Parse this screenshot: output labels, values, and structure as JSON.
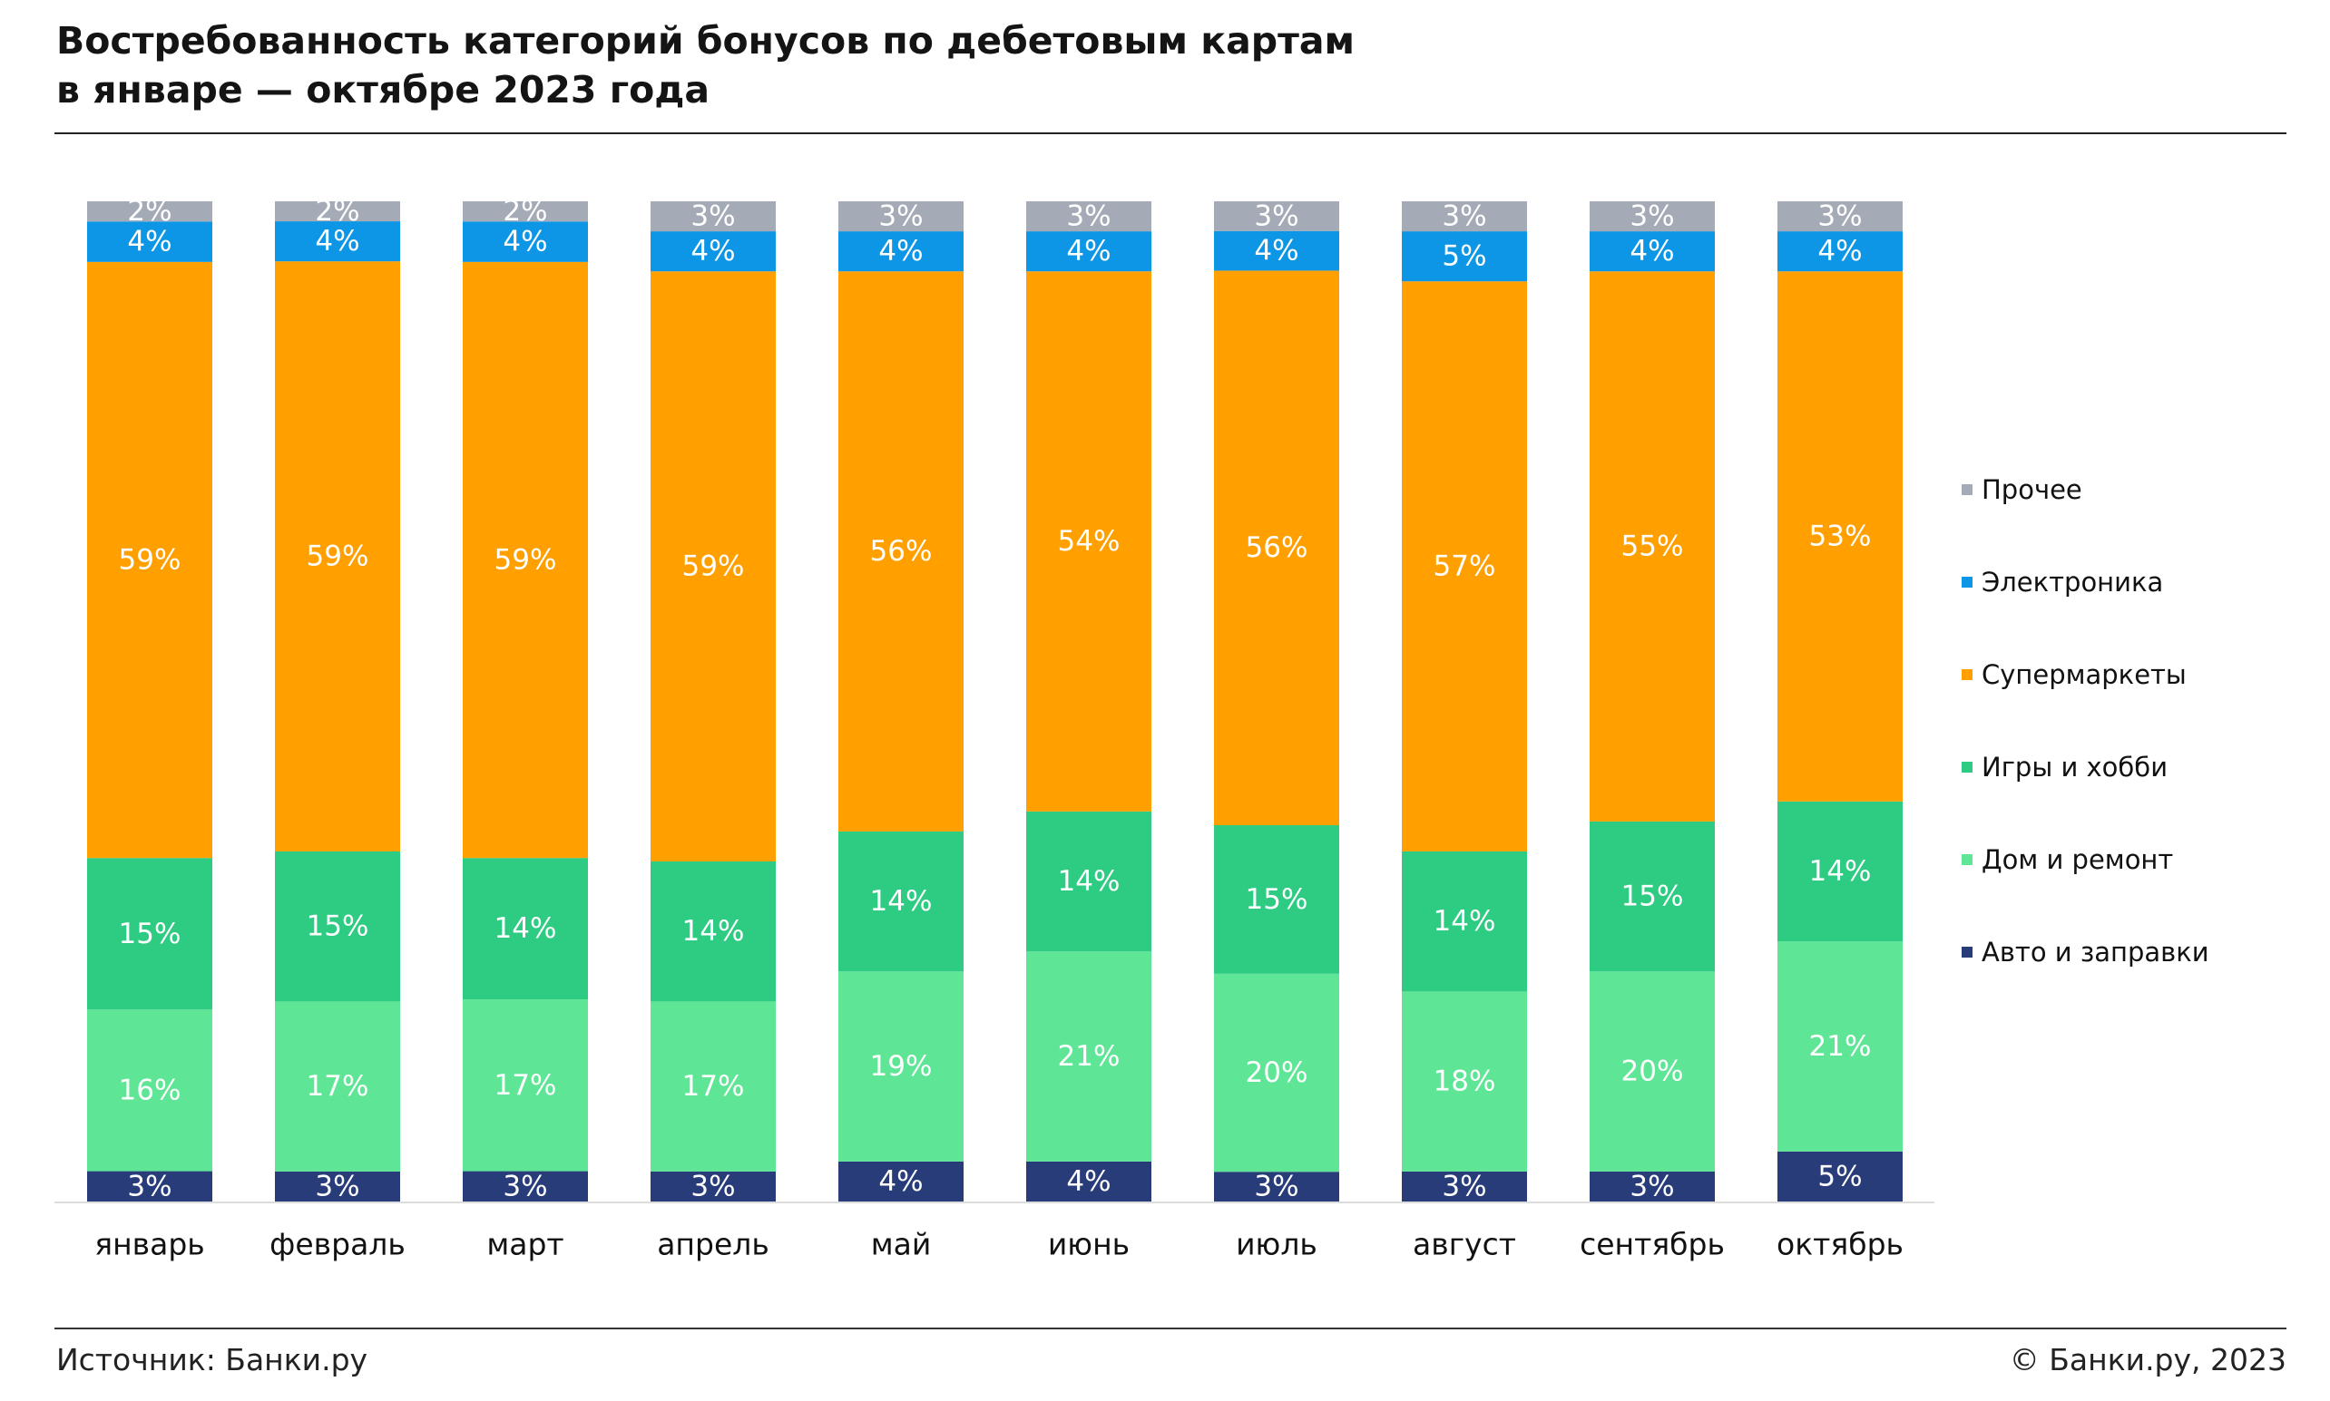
{
  "header": {
    "title_line1": "Востребованность категорий бонусов по дебетовым картам",
    "title_line2": "в январе — октябре 2023 года"
  },
  "footer": {
    "source": "Источник: Банки.ру",
    "copyright": "© Банки.ру, 2023"
  },
  "colors": {
    "other": "#a4aab6",
    "electronics": "#0d96e6",
    "supermarkets": "#ff9f00",
    "games": "#2ecb83",
    "home": "#5ee696",
    "auto": "#283c7a"
  },
  "chart_data": {
    "type": "bar",
    "stacked": true,
    "categories": [
      "январь",
      "февраль",
      "март",
      "апрель",
      "май",
      "июнь",
      "июль",
      "август",
      "сентябрь",
      "октябрь"
    ],
    "series": [
      {
        "name": "Авто и заправки",
        "key": "auto",
        "values": [
          3,
          3,
          3,
          3,
          4,
          4,
          3,
          3,
          3,
          5
        ],
        "labels": [
          "3%",
          "3%",
          "3%",
          "3%",
          "4%",
          "4%",
          "3%",
          "3%",
          "3%",
          "5%"
        ]
      },
      {
        "name": "Дом и ремонт",
        "key": "home",
        "values": [
          16,
          17,
          17,
          17,
          19,
          21,
          20,
          18,
          20,
          21
        ],
        "labels": [
          "16%",
          "17%",
          "17%",
          "17%",
          "19%",
          "21%",
          "20%",
          "18%",
          "20%",
          "21%"
        ]
      },
      {
        "name": "Игры и хобби",
        "key": "games",
        "values": [
          15,
          15,
          14,
          14,
          14,
          14,
          15,
          14,
          15,
          14
        ],
        "labels": [
          "15%",
          "15%",
          "14%",
          "14%",
          "14%",
          "14%",
          "15%",
          "14%",
          "15%",
          "14%"
        ]
      },
      {
        "name": "Супермаркеты",
        "key": "supermarkets",
        "values": [
          59,
          59,
          59,
          59,
          56,
          54,
          56,
          57,
          55,
          53
        ],
        "labels": [
          "59%",
          "59%",
          "59%",
          "59%",
          "56%",
          "54%",
          "56%",
          "57%",
          "55%",
          "53%"
        ]
      },
      {
        "name": "Электроника",
        "key": "electronics",
        "values": [
          4,
          4,
          4,
          4,
          4,
          4,
          4,
          5,
          4,
          4
        ],
        "labels": [
          "4%",
          "4%",
          "4%",
          "4%",
          "4%",
          "4%",
          "4%",
          "5%",
          "4%",
          "4%"
        ]
      },
      {
        "name": "Прочее",
        "key": "other",
        "values": [
          2,
          2,
          2,
          3,
          3,
          3,
          3,
          3,
          3,
          3
        ],
        "labels": [
          "2%",
          "2%",
          "2%",
          "3%",
          "3%",
          "3%",
          "3%",
          "3%",
          "3%",
          "3%"
        ]
      }
    ],
    "legend": [
      "Прочее",
      "Электроника",
      "Супермаркеты",
      "Игры и хобби",
      "Дом и ремонт",
      "Авто и заправки"
    ],
    "legend_position": "right",
    "grid": false,
    "ylim": [
      0,
      100
    ]
  }
}
